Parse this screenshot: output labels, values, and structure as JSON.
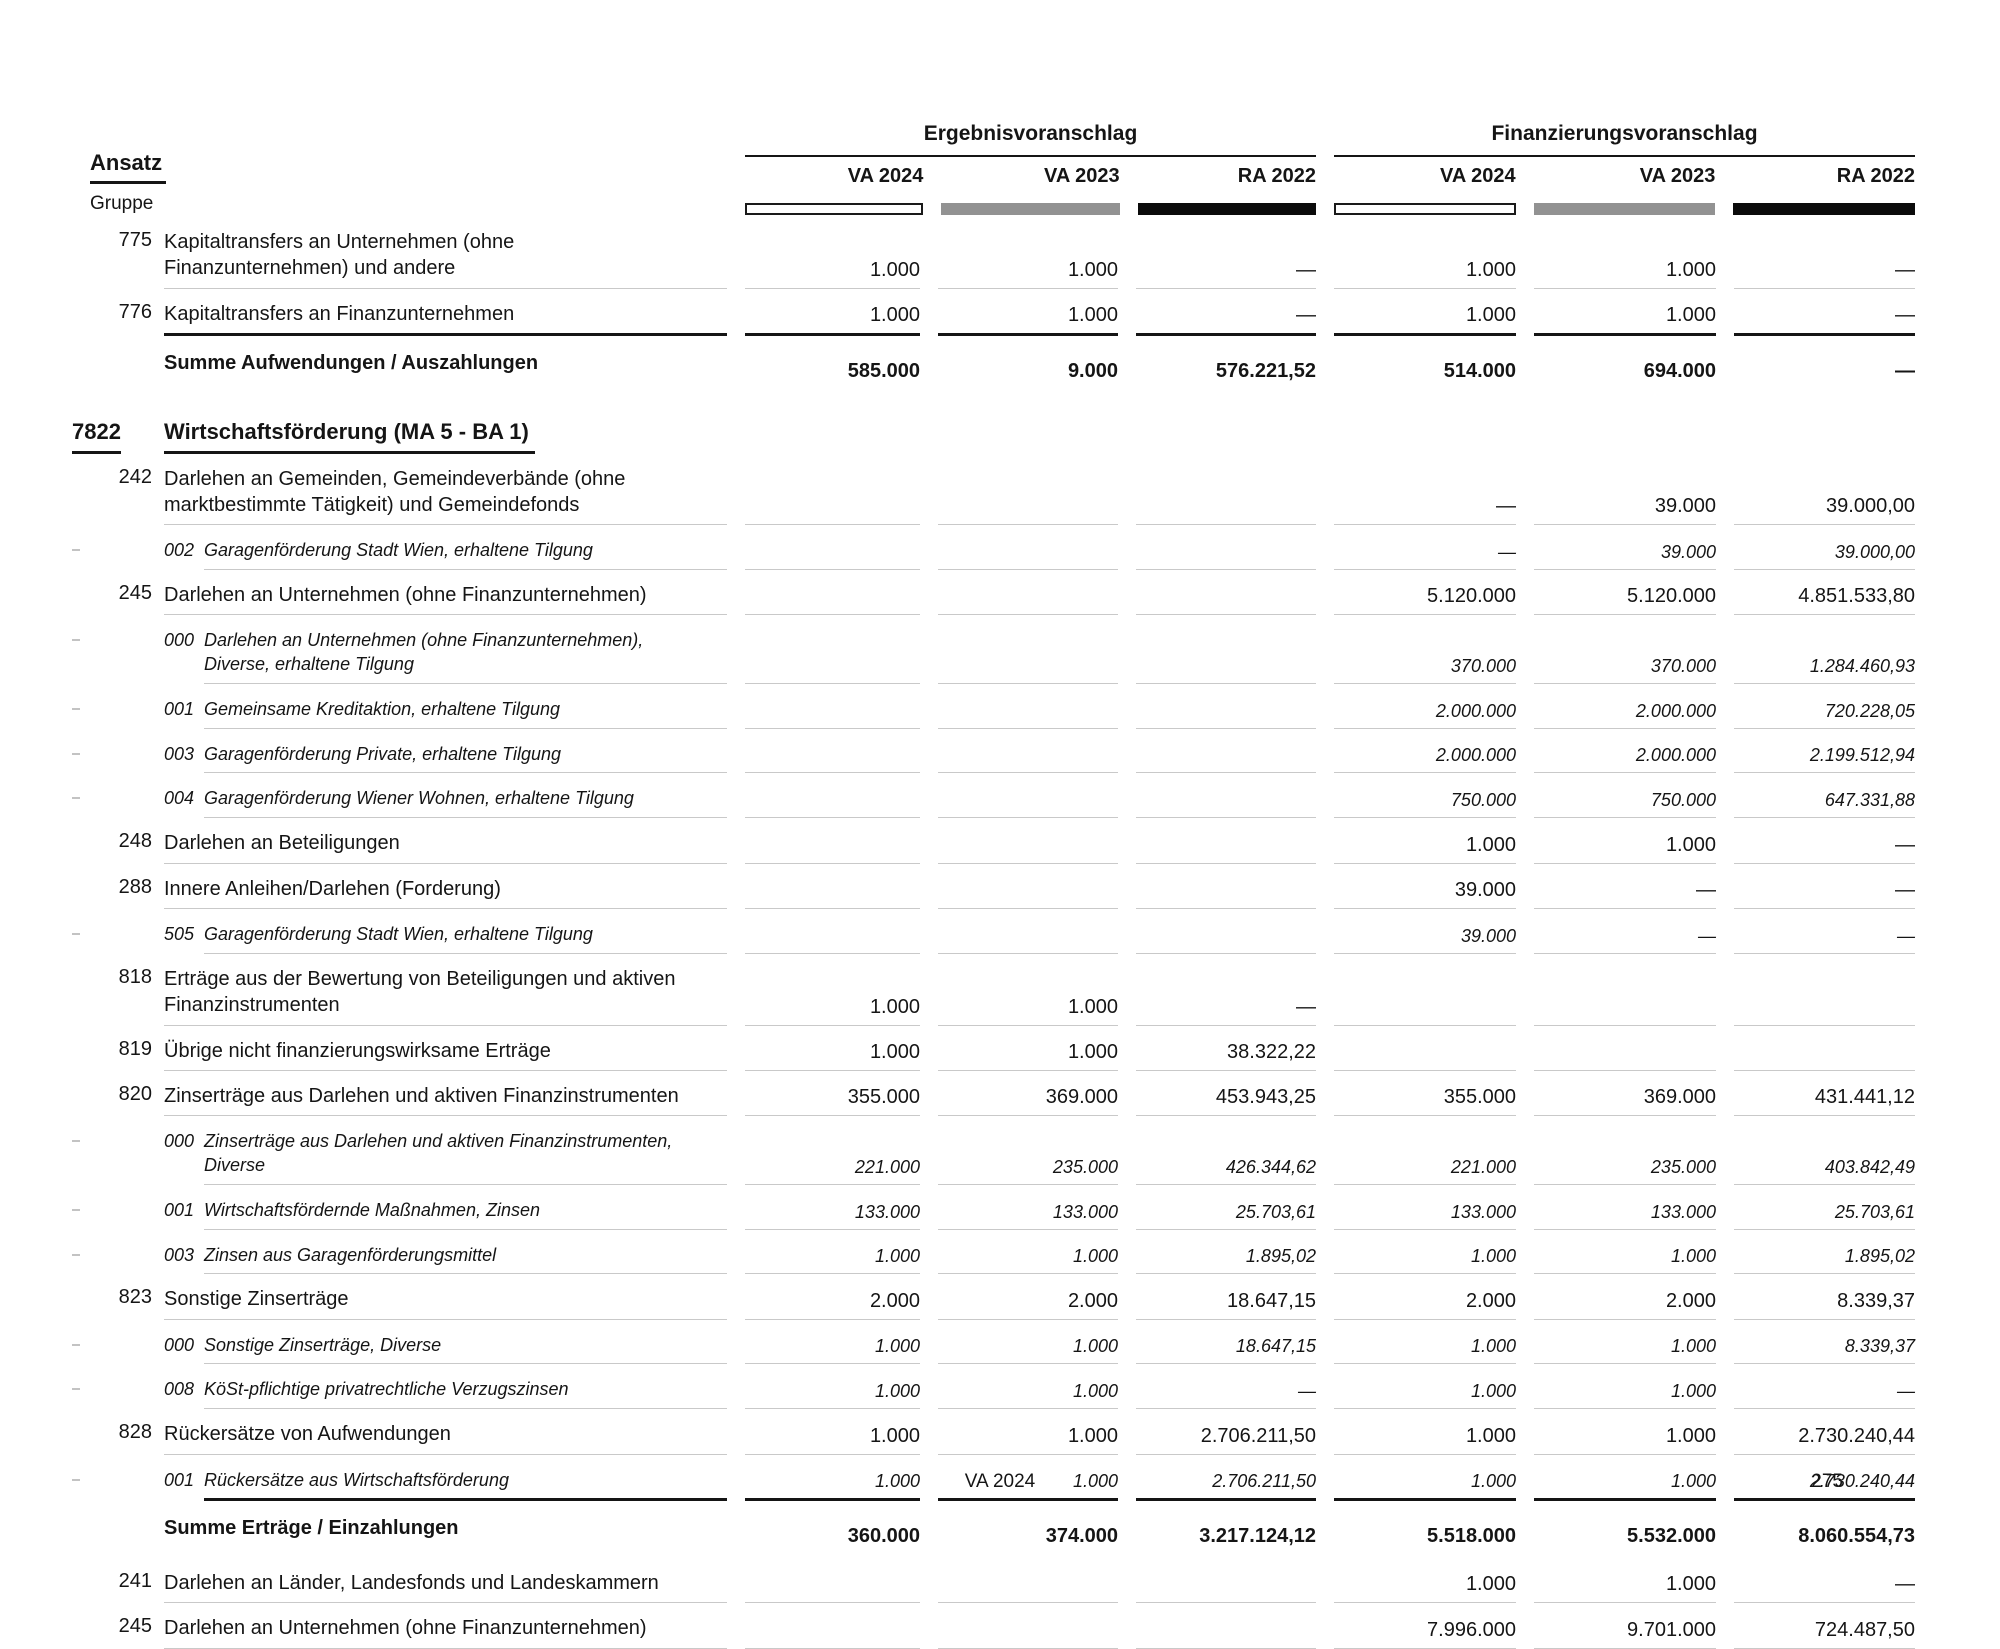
{
  "header": {
    "ansatz_label": "Ansatz",
    "gruppe_label": "Gruppe",
    "groups": [
      {
        "title": "Ergebnisvoranschlag",
        "columns": [
          "VA 2024",
          "VA 2023",
          "RA 2022"
        ]
      },
      {
        "title": "Finanzierungsvoranschlag",
        "columns": [
          "VA 2024",
          "VA 2023",
          "RA 2022"
        ]
      }
    ],
    "legend": [
      {
        "name": "va-2024-bar",
        "fill": "#ffffff",
        "border": "#1a1a1a"
      },
      {
        "name": "va-2023-bar",
        "fill": "#929292",
        "border": "#929292"
      },
      {
        "name": "ra-2022-bar",
        "fill": "#0b0b0b",
        "border": "#0b0b0b"
      }
    ],
    "line_color": "#151515",
    "separator_color": "#c9c9c9"
  },
  "table": {
    "rows": [
      {
        "kind": "account",
        "code": "775",
        "label": "Kapitaltransfers an Unternehmen (ohne Finanzunternehmen) und andere",
        "values": [
          "1.000",
          "1.000",
          "—",
          "1.000",
          "1.000",
          "—"
        ]
      },
      {
        "kind": "account",
        "code": "776",
        "label": "Kapitaltransfers an Finanzunternehmen",
        "values": [
          "1.000",
          "1.000",
          "—",
          "1.000",
          "1.000",
          "—"
        ],
        "rule_below": true
      },
      {
        "kind": "sum",
        "label": "Summe Aufwendungen / Auszahlungen",
        "values": [
          "585.000",
          "9.000",
          "576.221,52",
          "514.000",
          "694.000",
          "—"
        ]
      },
      {
        "kind": "section",
        "code": "7822",
        "label": "Wirtschaftsförderung (MA 5 - BA 1)"
      },
      {
        "kind": "account",
        "code": "242",
        "label": "Darlehen an Gemeinden, Gemeindeverbände (ohne marktbestimmte Tätigkeit) und Gemeindefonds",
        "values": [
          "",
          "",
          "",
          "—",
          "39.000",
          "39.000,00"
        ]
      },
      {
        "kind": "sub",
        "code": "002",
        "label": "Garagenförderung Stadt Wien, erhaltene Tilgung",
        "values": [
          "",
          "",
          "",
          "—",
          "39.000",
          "39.000,00"
        ]
      },
      {
        "kind": "account",
        "code": "245",
        "label": "Darlehen an Unternehmen (ohne Finanzunternehmen)",
        "values": [
          "",
          "",
          "",
          "5.120.000",
          "5.120.000",
          "4.851.533,80"
        ]
      },
      {
        "kind": "sub",
        "code": "000",
        "label": "Darlehen an Unternehmen (ohne Finanzunternehmen), Diverse, erhaltene Tilgung",
        "values": [
          "",
          "",
          "",
          "370.000",
          "370.000",
          "1.284.460,93"
        ]
      },
      {
        "kind": "sub",
        "code": "001",
        "label": "Gemeinsame Kreditaktion, erhaltene Tilgung",
        "values": [
          "",
          "",
          "",
          "2.000.000",
          "2.000.000",
          "720.228,05"
        ]
      },
      {
        "kind": "sub",
        "code": "003",
        "label": "Garagenförderung Private, erhaltene Tilgung",
        "values": [
          "",
          "",
          "",
          "2.000.000",
          "2.000.000",
          "2.199.512,94"
        ]
      },
      {
        "kind": "sub",
        "code": "004",
        "label": "Garagenförderung Wiener Wohnen, erhaltene Tilgung",
        "values": [
          "",
          "",
          "",
          "750.000",
          "750.000",
          "647.331,88"
        ]
      },
      {
        "kind": "account",
        "code": "248",
        "label": "Darlehen an Beteiligungen",
        "values": [
          "",
          "",
          "",
          "1.000",
          "1.000",
          "—"
        ]
      },
      {
        "kind": "account",
        "code": "288",
        "label": "Innere Anleihen/Darlehen (Forderung)",
        "values": [
          "",
          "",
          "",
          "39.000",
          "—",
          "—"
        ]
      },
      {
        "kind": "sub",
        "code": "505",
        "label": "Garagenförderung Stadt Wien, erhaltene Tilgung",
        "values": [
          "",
          "",
          "",
          "39.000",
          "—",
          "—"
        ]
      },
      {
        "kind": "account",
        "code": "818",
        "label": "Erträge aus der Bewertung von Beteiligungen und aktiven Finanzinstrumenten",
        "values": [
          "1.000",
          "1.000",
          "—",
          "",
          "",
          ""
        ]
      },
      {
        "kind": "account",
        "code": "819",
        "label": "Übrige nicht finanzierungswirksame Erträge",
        "values": [
          "1.000",
          "1.000",
          "38.322,22",
          "",
          "",
          ""
        ]
      },
      {
        "kind": "account",
        "code": "820",
        "label": "Zinserträge aus Darlehen und aktiven Finanzinstrumenten",
        "values": [
          "355.000",
          "369.000",
          "453.943,25",
          "355.000",
          "369.000",
          "431.441,12"
        ]
      },
      {
        "kind": "sub",
        "code": "000",
        "label": "Zinserträge aus Darlehen und aktiven Finanzinstrumenten, Diverse",
        "values": [
          "221.000",
          "235.000",
          "426.344,62",
          "221.000",
          "235.000",
          "403.842,49"
        ]
      },
      {
        "kind": "sub",
        "code": "001",
        "label": "Wirtschaftsfördernde Maßnahmen, Zinsen",
        "values": [
          "133.000",
          "133.000",
          "25.703,61",
          "133.000",
          "133.000",
          "25.703,61"
        ]
      },
      {
        "kind": "sub",
        "code": "003",
        "label": "Zinsen aus Garagenförderungsmittel",
        "values": [
          "1.000",
          "1.000",
          "1.895,02",
          "1.000",
          "1.000",
          "1.895,02"
        ]
      },
      {
        "kind": "account",
        "code": "823",
        "label": "Sonstige Zinserträge",
        "values": [
          "2.000",
          "2.000",
          "18.647,15",
          "2.000",
          "2.000",
          "8.339,37"
        ]
      },
      {
        "kind": "sub",
        "code": "000",
        "label": "Sonstige Zinserträge, Diverse",
        "values": [
          "1.000",
          "1.000",
          "18.647,15",
          "1.000",
          "1.000",
          "8.339,37"
        ]
      },
      {
        "kind": "sub",
        "code": "008",
        "label": "KöSt-pflichtige privatrechtliche Verzugszinsen",
        "values": [
          "1.000",
          "1.000",
          "—",
          "1.000",
          "1.000",
          "—"
        ]
      },
      {
        "kind": "account",
        "code": "828",
        "label": "Rückersätze von Aufwendungen",
        "values": [
          "1.000",
          "1.000",
          "2.706.211,50",
          "1.000",
          "1.000",
          "2.730.240,44"
        ]
      },
      {
        "kind": "sub",
        "code": "001",
        "label": "Rückersätze aus Wirtschaftsförderung",
        "values": [
          "1.000",
          "1.000",
          "2.706.211,50",
          "1.000",
          "1.000",
          "2.730.240,44"
        ],
        "rule_below": true
      },
      {
        "kind": "sum",
        "label": "Summe Erträge / Einzahlungen",
        "values": [
          "360.000",
          "374.000",
          "3.217.124,12",
          "5.518.000",
          "5.532.000",
          "8.060.554,73"
        ]
      },
      {
        "kind": "account",
        "code": "241",
        "label": "Darlehen an Länder, Landesfonds und Landeskammern",
        "values": [
          "",
          "",
          "",
          "1.000",
          "1.000",
          "—"
        ]
      },
      {
        "kind": "account",
        "code": "245",
        "label": "Darlehen an Unternehmen (ohne Finanzunternehmen)",
        "values": [
          "",
          "",
          "",
          "7.996.000",
          "9.701.000",
          "724.487,50"
        ]
      }
    ]
  },
  "footer": {
    "center": "VA 2024",
    "page": "275"
  }
}
